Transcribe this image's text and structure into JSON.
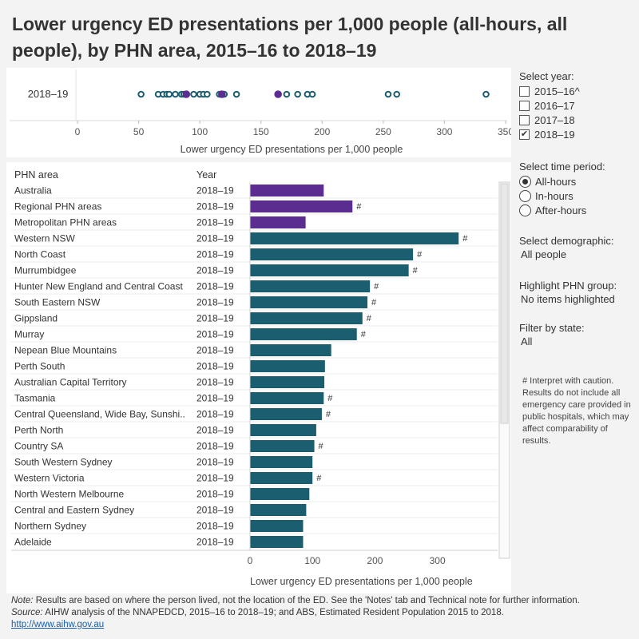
{
  "title": "Lower urgency ED presentations per 1,000 people (all-hours, all people), by PHN area, 2015–16 to 2018–19",
  "colors": {
    "purple": "#5b2d90",
    "teal": "#1b5e70",
    "bg": "#f3f3f3"
  },
  "filters": {
    "year_label": "Select year:",
    "years": [
      {
        "label": "2015–16^",
        "checked": false
      },
      {
        "label": "2016–17",
        "checked": false
      },
      {
        "label": "2017–18",
        "checked": false
      },
      {
        "label": "2018–19",
        "checked": true
      }
    ],
    "period_label": "Select time period:",
    "periods": [
      {
        "label": "All-hours",
        "selected": true
      },
      {
        "label": "In-hours",
        "selected": false
      },
      {
        "label": "After-hours",
        "selected": false
      }
    ],
    "demographic_label": "Select demographic:",
    "demographic_value": "All people",
    "highlight_label": "Highlight PHN group:",
    "highlight_value": "No items highlighted",
    "state_label": "Filter by state:",
    "state_value": "All"
  },
  "caution_note": "# Interpret with caution. Results do not include all emergency care provided in public hospitals, which may affect comparability of results.",
  "footer": {
    "note_label": "Note:",
    "note_text": " Results are based on where the person lived, not the location of the ED. See the 'Notes' tab and Technical note for further information.",
    "source_label": "Source:",
    "source_text": " AIHW analysis of the NNAPEDCD, 2015–16 to 2018–19; and ABS, Estimated Resident Population 2015 to 2018.",
    "link": "http://www.aihw.gov.au"
  },
  "chart_data": [
    {
      "type": "scatter",
      "row_label": "2018–19",
      "xlabel": "Lower urgency ED presentations per 1,000 people",
      "xlim": [
        0,
        350
      ],
      "xticks": [
        "0",
        "50",
        "100",
        "150",
        "200",
        "250",
        "300",
        "350"
      ],
      "points": [
        {
          "x": 52,
          "kind": "open"
        },
        {
          "x": 66,
          "kind": "open"
        },
        {
          "x": 70,
          "kind": "open"
        },
        {
          "x": 73,
          "kind": "open"
        },
        {
          "x": 75,
          "kind": "open"
        },
        {
          "x": 80,
          "kind": "open"
        },
        {
          "x": 85,
          "kind": "open"
        },
        {
          "x": 87,
          "kind": "open"
        },
        {
          "x": 95,
          "kind": "open"
        },
        {
          "x": 100,
          "kind": "open"
        },
        {
          "x": 103,
          "kind": "open"
        },
        {
          "x": 106,
          "kind": "open"
        },
        {
          "x": 116,
          "kind": "open"
        },
        {
          "x": 120,
          "kind": "open"
        },
        {
          "x": 130,
          "kind": "open"
        },
        {
          "x": 171,
          "kind": "open"
        },
        {
          "x": 180,
          "kind": "open"
        },
        {
          "x": 188,
          "kind": "open"
        },
        {
          "x": 192,
          "kind": "open"
        },
        {
          "x": 254,
          "kind": "open"
        },
        {
          "x": 261,
          "kind": "open"
        },
        {
          "x": 334,
          "kind": "open"
        },
        {
          "x": 89,
          "kind": "filled"
        },
        {
          "x": 118,
          "kind": "filled"
        },
        {
          "x": 164,
          "kind": "filled"
        }
      ]
    },
    {
      "type": "bar",
      "col_headers": [
        "PHN area",
        "Year"
      ],
      "xlabel": "Lower urgency ED presentations per 1,000 people",
      "xlim": [
        0,
        390
      ],
      "xticks": [
        "0",
        "100",
        "200",
        "300"
      ],
      "rows": [
        {
          "label": "Australia",
          "year": "2018–19",
          "value": 118,
          "group": "summary",
          "flag": ""
        },
        {
          "label": "Regional PHN areas",
          "year": "2018–19",
          "value": 164,
          "group": "summary",
          "flag": "#"
        },
        {
          "label": "Metropolitan PHN areas",
          "year": "2018–19",
          "value": 89,
          "group": "summary",
          "flag": ""
        },
        {
          "label": "Western NSW",
          "year": "2018–19",
          "value": 334,
          "group": "phn",
          "flag": "#"
        },
        {
          "label": "North Coast",
          "year": "2018–19",
          "value": 261,
          "group": "phn",
          "flag": "#"
        },
        {
          "label": "Murrumbidgee",
          "year": "2018–19",
          "value": 254,
          "group": "phn",
          "flag": "#"
        },
        {
          "label": "Hunter New England and Central Coast",
          "year": "2018–19",
          "value": 192,
          "group": "phn",
          "flag": "#"
        },
        {
          "label": "South Eastern NSW",
          "year": "2018–19",
          "value": 188,
          "group": "phn",
          "flag": "#"
        },
        {
          "label": "Gippsland",
          "year": "2018–19",
          "value": 180,
          "group": "phn",
          "flag": "#"
        },
        {
          "label": "Murray",
          "year": "2018–19",
          "value": 171,
          "group": "phn",
          "flag": "#"
        },
        {
          "label": "Nepean Blue Mountains",
          "year": "2018–19",
          "value": 130,
          "group": "phn",
          "flag": ""
        },
        {
          "label": "Perth South",
          "year": "2018–19",
          "value": 120,
          "group": "phn",
          "flag": ""
        },
        {
          "label": "Australian Capital Territory",
          "year": "2018–19",
          "value": 119,
          "group": "phn",
          "flag": ""
        },
        {
          "label": "Tasmania",
          "year": "2018–19",
          "value": 118,
          "group": "phn",
          "flag": "#"
        },
        {
          "label": "Central Queensland, Wide Bay, Sunshi..",
          "year": "2018–19",
          "value": 115,
          "group": "phn",
          "flag": "#"
        },
        {
          "label": "Perth North",
          "year": "2018–19",
          "value": 106,
          "group": "phn",
          "flag": ""
        },
        {
          "label": "Country SA",
          "year": "2018–19",
          "value": 103,
          "group": "phn",
          "flag": "#"
        },
        {
          "label": "South Western Sydney",
          "year": "2018–19",
          "value": 100,
          "group": "phn",
          "flag": ""
        },
        {
          "label": "Western Victoria",
          "year": "2018–19",
          "value": 100,
          "group": "phn",
          "flag": "#"
        },
        {
          "label": "North Western Melbourne",
          "year": "2018–19",
          "value": 95,
          "group": "phn",
          "flag": ""
        },
        {
          "label": "Central and Eastern Sydney",
          "year": "2018–19",
          "value": 90,
          "group": "phn",
          "flag": ""
        },
        {
          "label": "Northern Sydney",
          "year": "2018–19",
          "value": 85,
          "group": "phn",
          "flag": ""
        },
        {
          "label": "Adelaide",
          "year": "2018–19",
          "value": 85,
          "group": "phn",
          "flag": ""
        }
      ]
    }
  ]
}
